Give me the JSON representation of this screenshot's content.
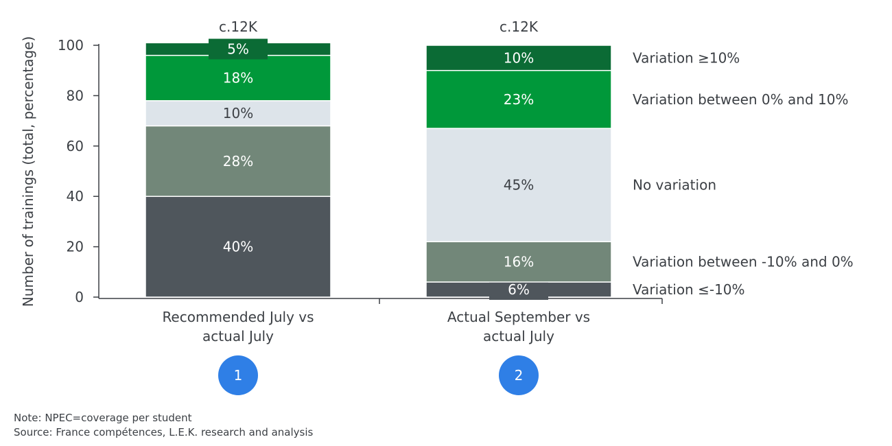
{
  "chart_data": {
    "type": "bar",
    "stacked": true,
    "ylabel": "Number of trainings (total, percentage)",
    "ylim": [
      0,
      100
    ],
    "yticks": [
      0,
      20,
      40,
      60,
      80,
      100
    ],
    "categories": [
      "Recommended July vs actual July",
      "Actual September vs actual July"
    ],
    "category_lines": [
      [
        "Recommended July vs",
        "actual July"
      ],
      [
        "Actual September vs",
        "actual July"
      ]
    ],
    "totals": [
      "c.12K",
      "c.12K"
    ],
    "markers": [
      "1",
      "2"
    ],
    "series": [
      {
        "name": "Variation ≤-10%",
        "color": "#4f565c",
        "text_color": "#ffffff",
        "values": [
          40,
          6
        ],
        "labels": [
          "40%",
          "6%"
        ]
      },
      {
        "name": "Variation between -10% and 0%",
        "color": "#728779",
        "text_color": "#ffffff",
        "values": [
          28,
          16
        ],
        "labels": [
          "28%",
          "16%"
        ]
      },
      {
        "name": "No variation",
        "color": "#dde4ea",
        "text_color": "#3b3f44",
        "values": [
          10,
          45
        ],
        "labels": [
          "10%",
          "45%"
        ]
      },
      {
        "name": "Variation between 0% and 10%",
        "color": "#00983a",
        "text_color": "#ffffff",
        "values": [
          18,
          23
        ],
        "labels": [
          "18%",
          "23%"
        ]
      },
      {
        "name": "Variation ≥10%",
        "color": "#0b6b35",
        "text_color": "#ffffff",
        "values": [
          5,
          10
        ],
        "labels": [
          "5%",
          "10%"
        ]
      }
    ],
    "legend_placement": "right"
  },
  "notes": {
    "note": "Note: NPEC=coverage per student",
    "source": "Source: France compétences, L.E.K. research and analysis"
  },
  "colors": {
    "axis": "#3b3f44",
    "marker": "#2f7fe6"
  }
}
